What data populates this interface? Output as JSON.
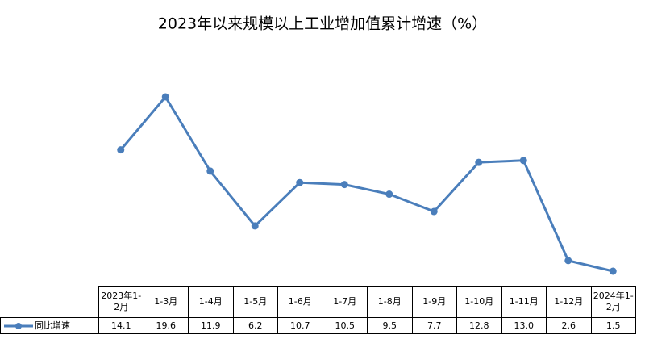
{
  "chart_data": {
    "type": "line",
    "title": "2023年以来规模以上工业增加值累计增速（%）",
    "categories": [
      "2023年1-2月",
      "1-3月",
      "1-4月",
      "1-5月",
      "1-6月",
      "1-7月",
      "1-8月",
      "1-9月",
      "1-10月",
      "1-11月",
      "1-12月",
      "2024年1-2月"
    ],
    "series": [
      {
        "name": "同比增速",
        "color": "#4a7ebb",
        "values": [
          14.1,
          19.6,
          11.9,
          6.2,
          10.7,
          10.5,
          9.5,
          7.7,
          12.8,
          13.0,
          2.6,
          1.5
        ],
        "value_labels": [
          "14.1",
          "19.6",
          "11.9",
          "6.2",
          "10.7",
          "10.5",
          "9.5",
          "7.7",
          "12.8",
          "13.0",
          "2.6",
          "1.5"
        ]
      }
    ]
  }
}
